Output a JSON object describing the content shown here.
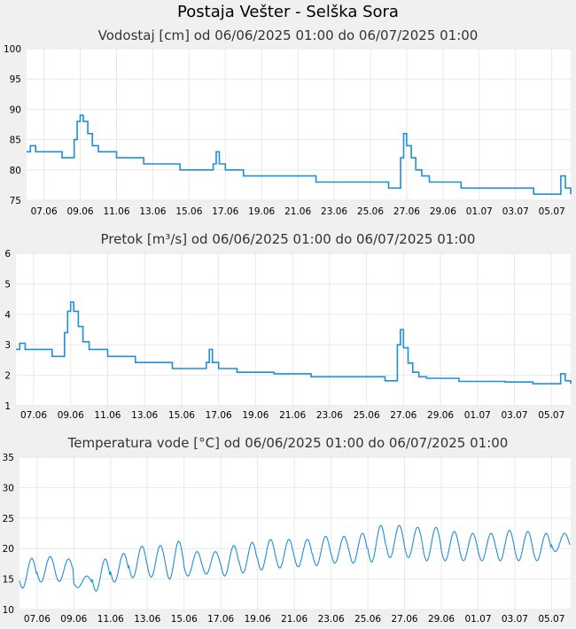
{
  "page": {
    "title": "Postaja Vešter - Selška Sora"
  },
  "chart_data": [
    {
      "type": "line",
      "title": "Vodostaj [cm] od 06/06/2025 01:00 do 06/07/2025 01:00",
      "xlabel": "",
      "ylabel": "",
      "ylim": [
        75,
        100
      ],
      "yticks": [
        75,
        80,
        85,
        90,
        95,
        100
      ],
      "xlim": [
        "2025-06-06 01:00",
        "2025-07-06 01:00"
      ],
      "xticks": [
        "07.06",
        "09.06",
        "11.06",
        "13.06",
        "15.06",
        "17.06",
        "19.06",
        "21.06",
        "23.06",
        "25.06",
        "27.06",
        "29.06",
        "01.07",
        "03.07",
        "05.07"
      ],
      "grid": true,
      "series": [
        {
          "x": [
            "2025-06-06 01:00",
            "2025-06-06 06:00",
            "2025-06-06 10:00",
            "2025-06-06 13:00",
            "2025-06-07 12:00",
            "2025-06-08 00:00",
            "2025-06-08 12:00",
            "2025-06-08 16:00",
            "2025-06-08 20:00",
            "2025-06-09 00:00",
            "2025-06-09 04:00",
            "2025-06-09 10:00",
            "2025-06-09 16:00",
            "2025-06-10 00:00",
            "2025-06-10 12:00",
            "2025-06-11 00:00",
            "2025-06-11 12:00",
            "2025-06-12 00:00",
            "2025-06-12 12:00",
            "2025-06-13 00:00",
            "2025-06-14 00:00",
            "2025-06-14 12:00",
            "2025-06-15 00:00",
            "2025-06-15 12:00",
            "2025-06-16 00:00",
            "2025-06-16 08:00",
            "2025-06-16 12:00",
            "2025-06-16 16:00",
            "2025-06-17 00:00",
            "2025-06-18 00:00",
            "2025-06-19 00:00",
            "2025-06-20 00:00",
            "2025-06-21 00:00",
            "2025-06-22 00:00",
            "2025-06-23 00:00",
            "2025-06-24 00:00",
            "2025-06-25 00:00",
            "2025-06-25 12:00",
            "2025-06-26 00:00",
            "2025-06-26 12:00",
            "2025-06-26 16:00",
            "2025-06-26 20:00",
            "2025-06-27 00:00",
            "2025-06-27 06:00",
            "2025-06-27 12:00",
            "2025-06-27 20:00",
            "2025-06-28 06:00",
            "2025-06-28 18:00",
            "2025-06-29 12:00",
            "2025-06-30 00:00",
            "2025-07-01 00:00",
            "2025-07-02 00:00",
            "2025-07-02 12:00",
            "2025-07-03 00:00",
            "2025-07-04 00:00",
            "2025-07-05 00:00",
            "2025-07-05 06:00",
            "2025-07-05 12:00",
            "2025-07-05 18:00",
            "2025-07-06 01:00"
          ],
          "y": [
            83,
            84,
            84,
            83,
            83,
            82,
            82,
            85,
            88,
            89,
            88,
            86,
            84,
            83,
            83,
            82,
            82,
            82,
            81,
            81,
            81,
            80,
            80,
            80,
            80,
            81,
            83,
            81,
            80,
            79,
            79,
            79,
            79,
            78,
            78,
            78,
            78,
            78,
            77,
            77,
            82,
            86,
            84,
            82,
            80,
            79,
            78,
            78,
            78,
            77,
            77,
            77,
            77,
            77,
            76,
            76,
            76,
            79,
            77,
            76
          ]
        }
      ]
    },
    {
      "type": "line",
      "title": "Pretok [m³/s] od 06/06/2025 01:00 do 06/07/2025 01:00",
      "xlabel": "",
      "ylabel": "",
      "ylim": [
        1,
        6
      ],
      "yticks": [
        1,
        2,
        3,
        4,
        5,
        6
      ],
      "xlim": [
        "2025-06-06 01:00",
        "2025-07-06 01:00"
      ],
      "xticks": [
        "07.06",
        "09.06",
        "11.06",
        "13.06",
        "15.06",
        "17.06",
        "19.06",
        "21.06",
        "23.06",
        "25.06",
        "27.06",
        "29.06",
        "01.07",
        "03.07",
        "05.07"
      ],
      "grid": true,
      "series": [
        {
          "x": [
            "2025-06-06 01:00",
            "2025-06-06 06:00",
            "2025-06-06 10:00",
            "2025-06-06 13:00",
            "2025-06-07 12:00",
            "2025-06-08 00:00",
            "2025-06-08 12:00",
            "2025-06-08 16:00",
            "2025-06-08 20:00",
            "2025-06-09 00:00",
            "2025-06-09 04:00",
            "2025-06-09 10:00",
            "2025-06-09 16:00",
            "2025-06-10 00:00",
            "2025-06-10 12:00",
            "2025-06-11 00:00",
            "2025-06-11 12:00",
            "2025-06-12 00:00",
            "2025-06-12 12:00",
            "2025-06-13 00:00",
            "2025-06-14 00:00",
            "2025-06-14 12:00",
            "2025-06-15 00:00",
            "2025-06-15 12:00",
            "2025-06-16 00:00",
            "2025-06-16 08:00",
            "2025-06-16 12:00",
            "2025-06-16 16:00",
            "2025-06-17 00:00",
            "2025-06-18 00:00",
            "2025-06-19 00:00",
            "2025-06-20 00:00",
            "2025-06-21 00:00",
            "2025-06-22 00:00",
            "2025-06-23 00:00",
            "2025-06-24 00:00",
            "2025-06-25 00:00",
            "2025-06-25 12:00",
            "2025-06-26 00:00",
            "2025-06-26 12:00",
            "2025-06-26 16:00",
            "2025-06-26 20:00",
            "2025-06-27 00:00",
            "2025-06-27 06:00",
            "2025-06-27 12:00",
            "2025-06-27 20:00",
            "2025-06-28 06:00",
            "2025-06-28 18:00",
            "2025-06-29 12:00",
            "2025-06-30 00:00",
            "2025-07-01 00:00",
            "2025-07-02 00:00",
            "2025-07-02 12:00",
            "2025-07-03 00:00",
            "2025-07-04 00:00",
            "2025-07-05 00:00",
            "2025-07-05 06:00",
            "2025-07-05 12:00",
            "2025-07-05 18:00",
            "2025-07-06 01:00"
          ],
          "y": [
            2.85,
            3.05,
            3.05,
            2.85,
            2.85,
            2.62,
            2.62,
            3.4,
            4.1,
            4.4,
            4.1,
            3.6,
            3.1,
            2.85,
            2.85,
            2.62,
            2.62,
            2.62,
            2.42,
            2.42,
            2.42,
            2.22,
            2.22,
            2.22,
            2.22,
            2.42,
            2.85,
            2.42,
            2.22,
            2.1,
            2.1,
            2.05,
            2.05,
            1.95,
            1.95,
            1.95,
            1.95,
            1.95,
            1.82,
            1.82,
            3.0,
            3.5,
            2.9,
            2.4,
            2.1,
            1.95,
            1.9,
            1.9,
            1.9,
            1.8,
            1.8,
            1.8,
            1.78,
            1.78,
            1.72,
            1.72,
            1.72,
            2.05,
            1.82,
            1.72
          ]
        }
      ]
    },
    {
      "type": "line",
      "title": "Temperatura vode [°C] od 06/06/2025 01:00 do 06/07/2025 01:00",
      "xlabel": "",
      "ylabel": "",
      "ylim": [
        10,
        35
      ],
      "yticks": [
        10,
        15,
        20,
        25,
        30,
        35
      ],
      "xlim": [
        "2025-06-06 01:00",
        "2025-07-06 01:00"
      ],
      "xticks": [
        "07.06",
        "09.06",
        "11.06",
        "13.06",
        "15.06",
        "17.06",
        "19.06",
        "21.06",
        "23.06",
        "25.06",
        "27.06",
        "29.06",
        "01.07",
        "03.07",
        "05.07"
      ],
      "grid": true,
      "series": [
        {
          "daily_min_max": [
            [
              13.5,
              18.4
            ],
            [
              14.5,
              18.7
            ],
            [
              14.6,
              18.3
            ],
            [
              13.6,
              15.5
            ],
            [
              13.0,
              18.3
            ],
            [
              14.5,
              19.2
            ],
            [
              15.2,
              20.4
            ],
            [
              15.3,
              20.5
            ],
            [
              15.0,
              21.2
            ],
            [
              15.5,
              19.5
            ],
            [
              15.8,
              19.5
            ],
            [
              15.5,
              20.5
            ],
            [
              16.0,
              21.0
            ],
            [
              16.5,
              21.5
            ],
            [
              16.8,
              21.5
            ],
            [
              17.0,
              21.5
            ],
            [
              17.2,
              22.0
            ],
            [
              17.6,
              22.0
            ],
            [
              17.6,
              22.5
            ],
            [
              17.8,
              23.8
            ],
            [
              18.5,
              23.8
            ],
            [
              18.5,
              23.5
            ],
            [
              18.0,
              23.5
            ],
            [
              18.0,
              22.8
            ],
            [
              18.0,
              22.5
            ],
            [
              18.0,
              22.5
            ],
            [
              18.0,
              23.0
            ],
            [
              18.0,
              22.8
            ],
            [
              18.0,
              22.5
            ],
            [
              19.5,
              22.5
            ]
          ]
        }
      ]
    }
  ]
}
